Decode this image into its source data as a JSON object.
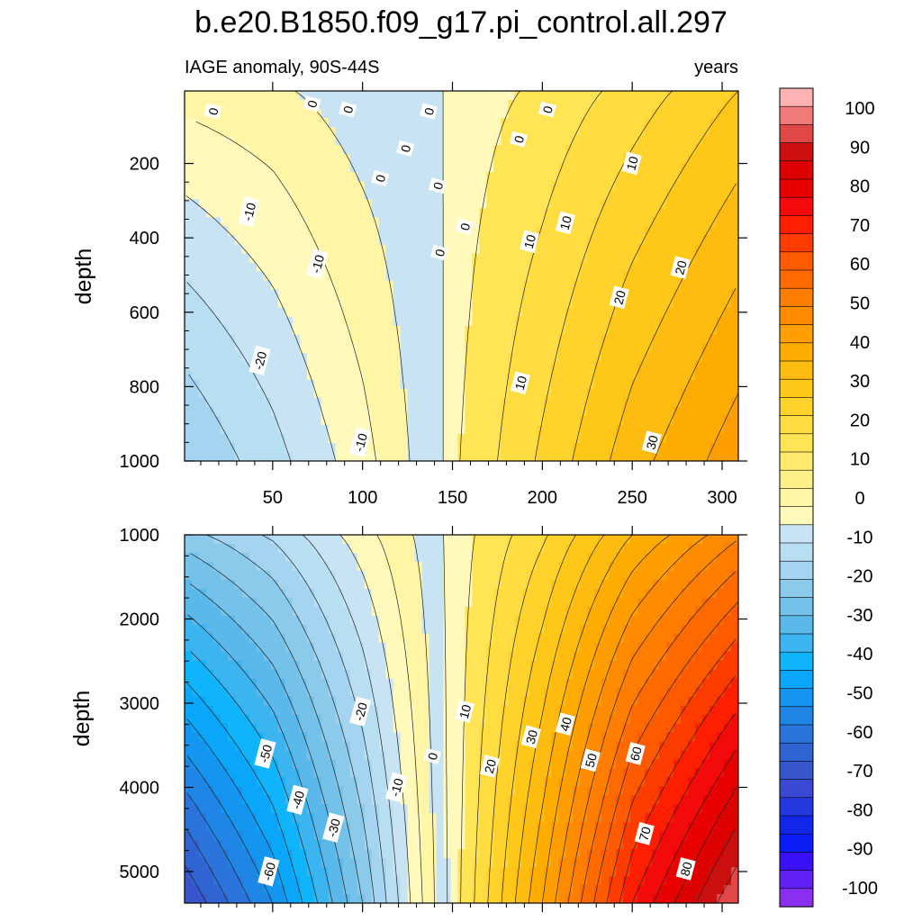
{
  "figure": {
    "title": "b.e20.B1850.f09_g17.pi_control.all.297",
    "subtitle_left": "IAGE anomaly, 90S-44S",
    "subtitle_right": "years"
  },
  "chart_data": [
    {
      "type": "heatmap",
      "panel": "upper",
      "xlabel": "",
      "ylabel": "depth",
      "xlim": [
        1,
        309
      ],
      "ylim": [
        1000,
        5
      ],
      "x_ticks": [
        50,
        100,
        150,
        200,
        250,
        300
      ],
      "y_ticks": [
        200,
        400,
        600,
        800,
        1000
      ],
      "contour_interval": 5,
      "surface": {
        "x_nodes": [
          1,
          50,
          100,
          145,
          150,
          200,
          250,
          309
        ],
        "value_at_top": [
          -8,
          -6,
          -2,
          0,
          2,
          6,
          12,
          20
        ],
        "value_at_bottom": [
          -30,
          -22,
          -12,
          0,
          4,
          16,
          28,
          38
        ]
      },
      "contour_labels": [
        {
          "x": 17,
          "depth": 60,
          "text": "0"
        },
        {
          "x": 72,
          "depth": 40,
          "text": "0"
        },
        {
          "x": 92,
          "depth": 55,
          "text": "0"
        },
        {
          "x": 137,
          "depth": 60,
          "text": "0"
        },
        {
          "x": 203,
          "depth": 55,
          "text": "0"
        },
        {
          "x": 124,
          "depth": 160,
          "text": "0"
        },
        {
          "x": 110,
          "depth": 240,
          "text": "0"
        },
        {
          "x": 142,
          "depth": 260,
          "text": "0"
        },
        {
          "x": 157,
          "depth": 370,
          "text": "0"
        },
        {
          "x": 143,
          "depth": 440,
          "text": "0"
        },
        {
          "x": 187,
          "depth": 135,
          "text": "0"
        },
        {
          "x": 250,
          "depth": 200,
          "text": "10"
        },
        {
          "x": 213,
          "depth": 360,
          "text": "10"
        },
        {
          "x": 193,
          "depth": 410,
          "text": "10"
        },
        {
          "x": 188,
          "depth": 790,
          "text": "10"
        },
        {
          "x": 37,
          "depth": 330,
          "text": "-10"
        },
        {
          "x": 75,
          "depth": 470,
          "text": "-10"
        },
        {
          "x": 99,
          "depth": 950,
          "text": "-10"
        },
        {
          "x": 43,
          "depth": 730,
          "text": "-20"
        },
        {
          "x": 277,
          "depth": 480,
          "text": "20"
        },
        {
          "x": 243,
          "depth": 560,
          "text": "20"
        },
        {
          "x": 261,
          "depth": 950,
          "text": "30"
        }
      ]
    },
    {
      "type": "heatmap",
      "panel": "lower",
      "xlabel": "",
      "ylabel": "depth",
      "xlim": [
        1,
        309
      ],
      "ylim": [
        5375,
        1000
      ],
      "y_ticks": [
        1000,
        2000,
        3000,
        4000,
        5000
      ],
      "contour_interval": 5,
      "surface": {
        "x_nodes": [
          1,
          50,
          100,
          140,
          150,
          200,
          250,
          309
        ],
        "value_at_top": [
          -32,
          -24,
          -12,
          -2,
          2,
          14,
          30,
          44
        ],
        "value_at_bottom": [
          -85,
          -65,
          -35,
          -5,
          2,
          35,
          70,
          95
        ]
      },
      "contour_labels": [
        {
          "x": 99,
          "depth": 3100,
          "text": "-20"
        },
        {
          "x": 139,
          "depth": 3630,
          "text": "0"
        },
        {
          "x": 157,
          "depth": 3100,
          "text": "10"
        },
        {
          "x": 171,
          "depth": 3750,
          "text": "20"
        },
        {
          "x": 194,
          "depth": 3400,
          "text": "30"
        },
        {
          "x": 213,
          "depth": 3250,
          "text": "40"
        },
        {
          "x": 227,
          "depth": 3680,
          "text": "50"
        },
        {
          "x": 252,
          "depth": 3600,
          "text": "60"
        },
        {
          "x": 46,
          "depth": 3600,
          "text": "-50"
        },
        {
          "x": 119,
          "depth": 4000,
          "text": "-10"
        },
        {
          "x": 64,
          "depth": 4150,
          "text": "-40"
        },
        {
          "x": 84,
          "depth": 4480,
          "text": "-30"
        },
        {
          "x": 257,
          "depth": 4550,
          "text": "70"
        },
        {
          "x": 48,
          "depth": 5000,
          "text": "-60"
        },
        {
          "x": 280,
          "depth": 4970,
          "text": "80"
        }
      ]
    }
  ],
  "colorbar": {
    "tick_labels": [
      "100",
      "90",
      "80",
      "70",
      "60",
      "50",
      "40",
      "30",
      "20",
      "10",
      "0",
      "-10",
      "-20",
      "-30",
      "-40",
      "-50",
      "-60",
      "-70",
      "-80",
      "-90",
      "-100"
    ],
    "colors": [
      "#fdb3b3",
      "#f07a7a",
      "#e04848",
      "#cc1010",
      "#dd0000",
      "#e80000",
      "#f40a0a",
      "#ff1e00",
      "#ff3c00",
      "#ff5a00",
      "#ff6a00",
      "#ff7d00",
      "#ff8c00",
      "#ff9e00",
      "#ffac00",
      "#ffbc10",
      "#ffc818",
      "#ffd22c",
      "#ffdc40",
      "#ffe455",
      "#ffea6e",
      "#fff08a",
      "#fff5a5",
      "#fff9bc",
      "#c8e4f4",
      "#b8def2",
      "#a4d4ef",
      "#8ccaec",
      "#74c1ea",
      "#5ab8ea",
      "#3cb4f0",
      "#10b4fa",
      "#0aa6fa",
      "#1496f0",
      "#2086e6",
      "#2a74dc",
      "#3064d2",
      "#3856cc",
      "#3a48d4",
      "#2438e0",
      "#1226ea",
      "#0a1cf4",
      "#3a10f8",
      "#6020f4",
      "#8a2ef0"
    ]
  }
}
